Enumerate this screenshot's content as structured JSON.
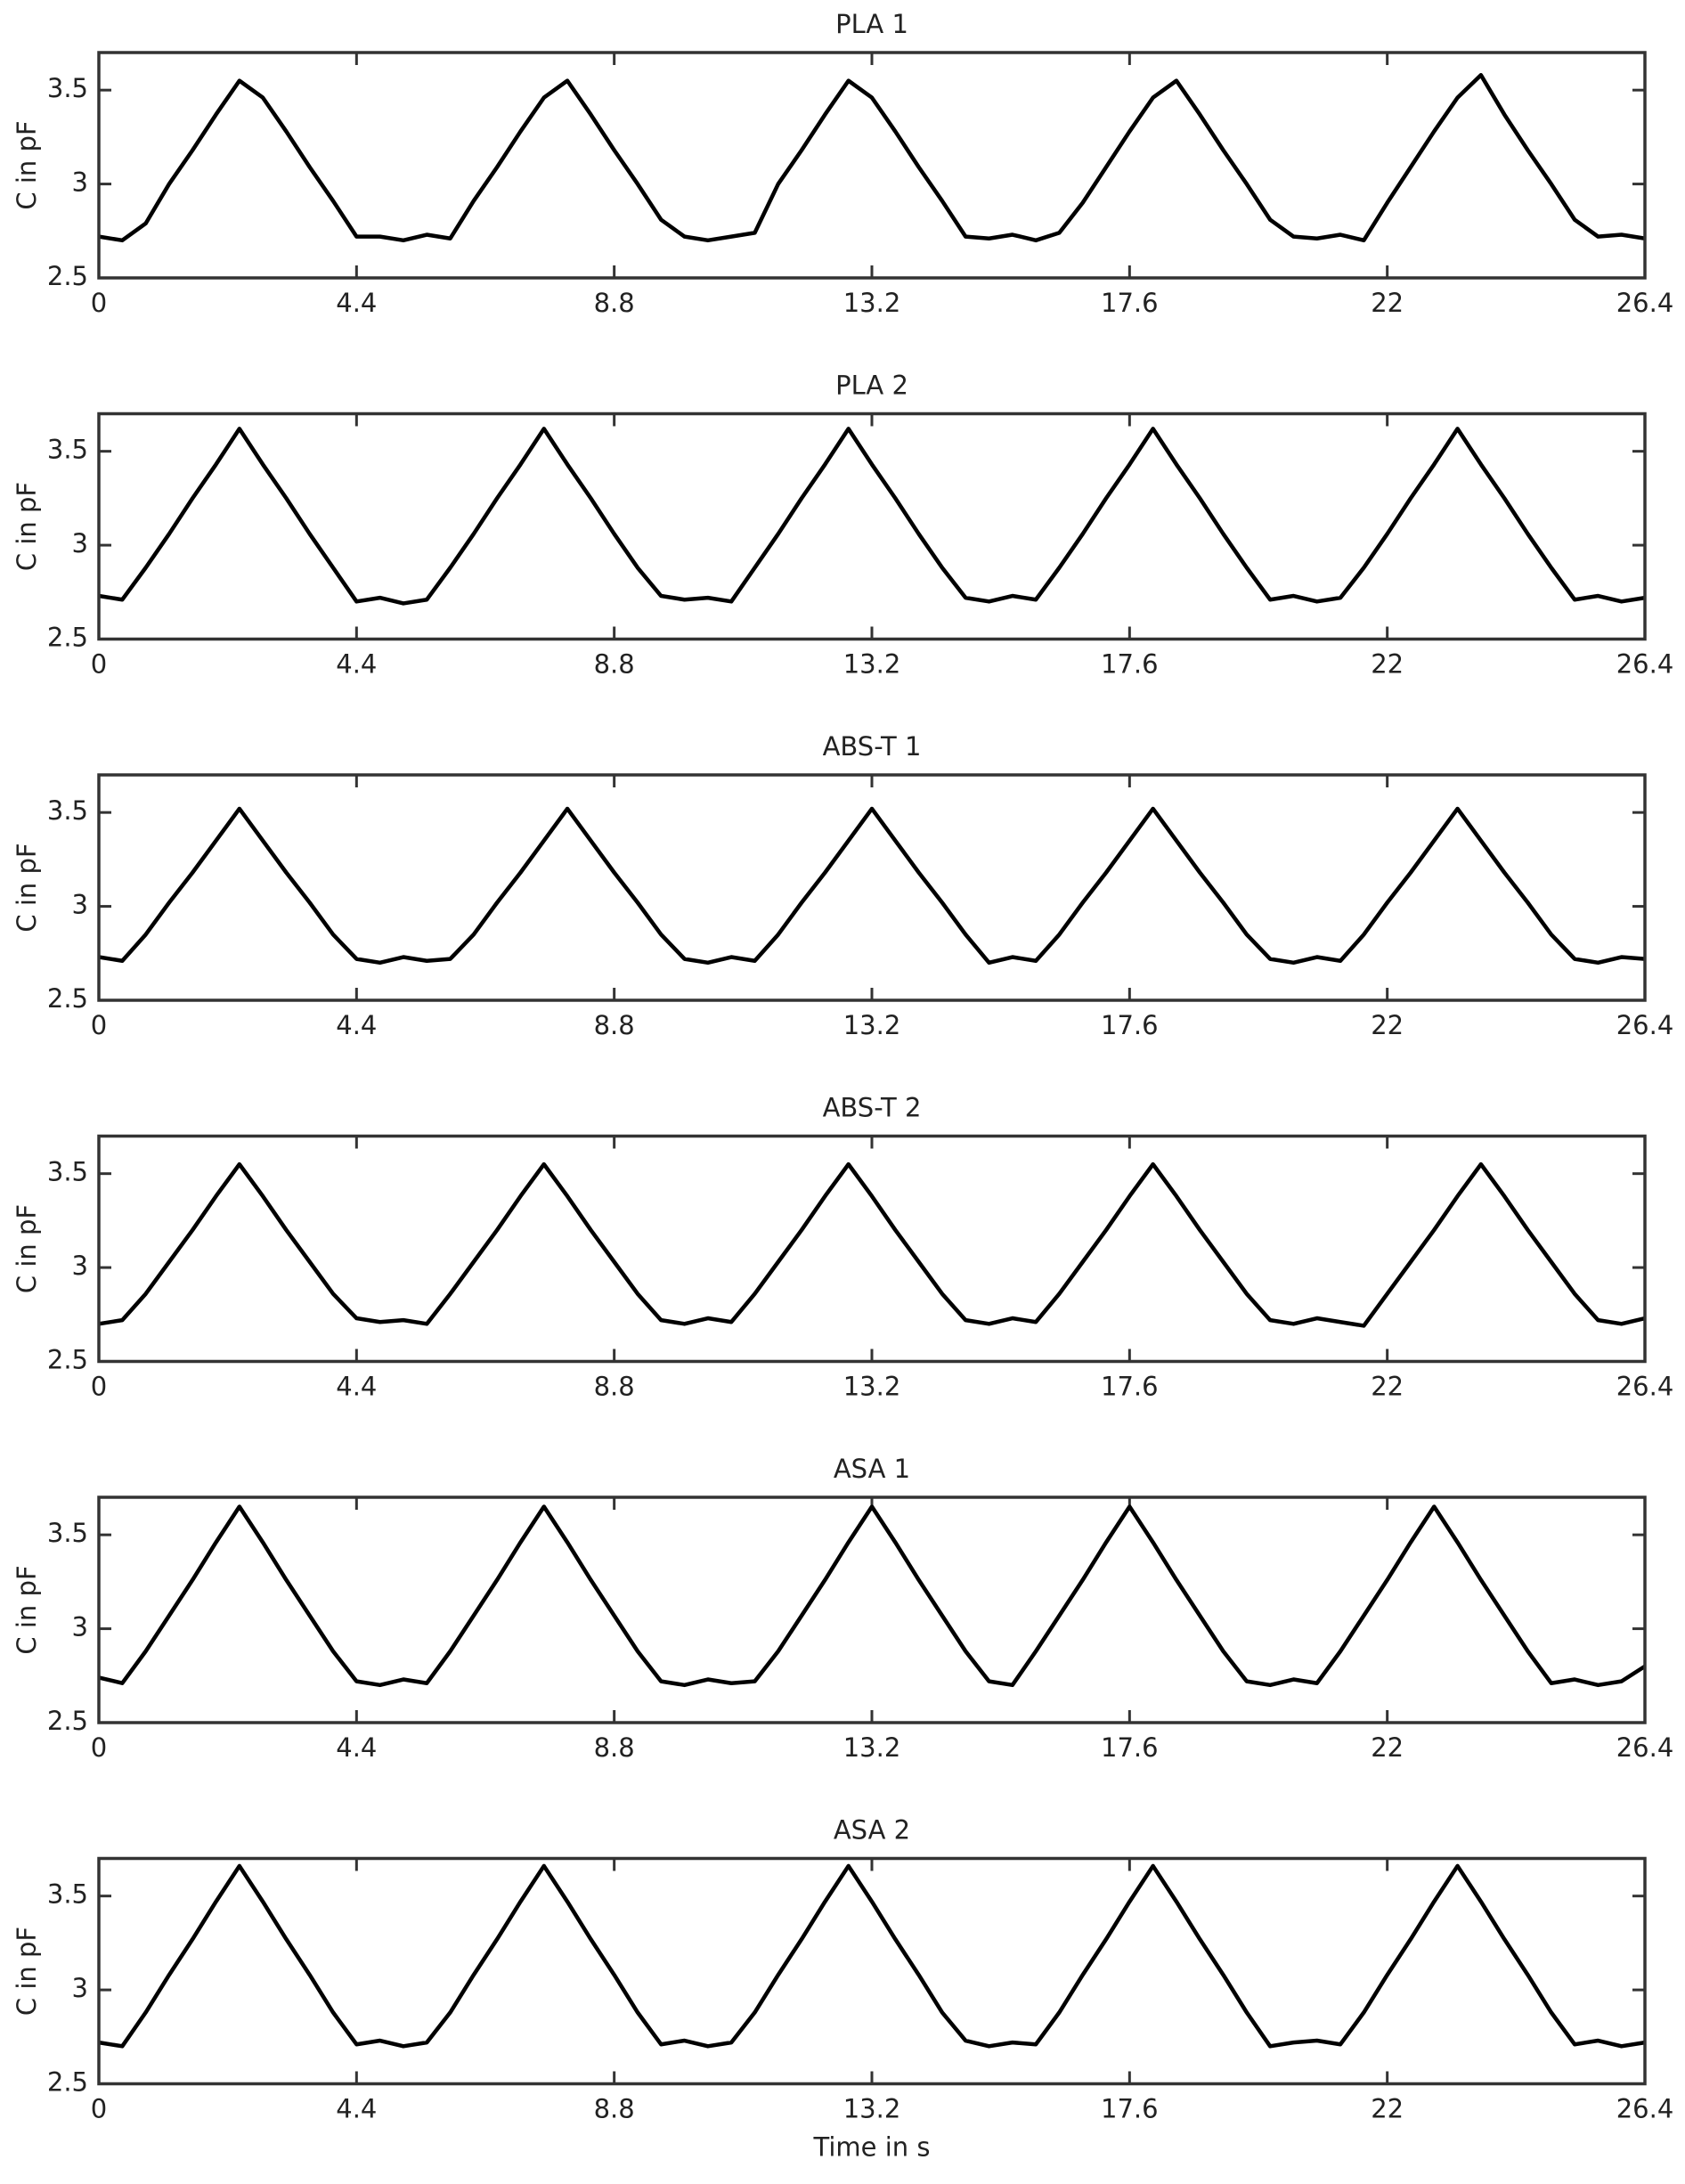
{
  "chart_data": [
    {
      "type": "line",
      "title": "PLA 1",
      "ylabel": "C in pF",
      "color": "#000000",
      "xlim": [
        0,
        26.4
      ],
      "xticks": [
        0,
        4.4,
        8.8,
        13.2,
        17.6,
        22,
        26.4
      ],
      "ylim": [
        2.5,
        3.7
      ],
      "yticks": [
        2.5,
        3,
        3.5
      ],
      "x": [
        0,
        0.4,
        0.8,
        1.2,
        1.6,
        2,
        2.4,
        2.8,
        3.2,
        3.6,
        4,
        4.4,
        4.8,
        5.2,
        5.6,
        6,
        6.4,
        6.8,
        7.2,
        7.6,
        8,
        8.4,
        8.8,
        9.2,
        9.6,
        10,
        10.4,
        10.8,
        11.2,
        11.6,
        12,
        12.4,
        12.8,
        13.2,
        13.6,
        14,
        14.4,
        14.8,
        15.2,
        15.6,
        16,
        16.4,
        16.8,
        17.2,
        17.6,
        18,
        18.4,
        18.8,
        19.2,
        19.6,
        20,
        20.4,
        20.8,
        21.2,
        21.6,
        22,
        22.4,
        22.8,
        23.2,
        23.6,
        24,
        24.4,
        24.8,
        25.2,
        25.6,
        26,
        26.4
      ],
      "values": [
        2.72,
        2.7,
        2.79,
        3.0,
        3.18,
        3.37,
        3.55,
        3.46,
        3.28,
        3.09,
        2.91,
        2.72,
        2.72,
        2.7,
        2.73,
        2.71,
        2.91,
        3.09,
        3.28,
        3.46,
        3.55,
        3.37,
        3.18,
        3.0,
        2.81,
        2.72,
        2.7,
        2.72,
        2.74,
        3.0,
        3.18,
        3.37,
        3.55,
        3.46,
        3.28,
        3.09,
        2.91,
        2.72,
        2.71,
        2.73,
        2.7,
        2.74,
        2.9,
        3.09,
        3.28,
        3.46,
        3.55,
        3.37,
        3.18,
        3.0,
        2.81,
        2.72,
        2.71,
        2.73,
        2.7,
        2.9,
        3.09,
        3.28,
        3.46,
        3.58,
        3.37,
        3.18,
        3.0,
        2.81,
        2.72,
        2.73,
        2.71
      ]
    },
    {
      "type": "line",
      "title": "PLA 2",
      "ylabel": "C in pF",
      "color": "#000000",
      "xlim": [
        0,
        26.4
      ],
      "xticks": [
        0,
        4.4,
        8.8,
        13.2,
        17.6,
        22,
        26.4
      ],
      "ylim": [
        2.5,
        3.7
      ],
      "yticks": [
        2.5,
        3,
        3.5
      ],
      "x": [
        0,
        0.4,
        0.8,
        1.2,
        1.6,
        2,
        2.4,
        2.8,
        3.2,
        3.6,
        4,
        4.4,
        4.8,
        5.2,
        5.6,
        6,
        6.4,
        6.8,
        7.2,
        7.6,
        8,
        8.4,
        8.8,
        9.2,
        9.6,
        10,
        10.4,
        10.8,
        11.2,
        11.6,
        12,
        12.4,
        12.8,
        13.2,
        13.6,
        14,
        14.4,
        14.8,
        15.2,
        15.6,
        16,
        16.4,
        16.8,
        17.2,
        17.6,
        18,
        18.4,
        18.8,
        19.2,
        19.6,
        20,
        20.4,
        20.8,
        21.2,
        21.6,
        22,
        22.4,
        22.8,
        23.2,
        23.6,
        24,
        24.4,
        24.8,
        25.2,
        25.6,
        26,
        26.4
      ],
      "values": [
        2.73,
        2.71,
        2.88,
        3.06,
        3.25,
        3.43,
        3.62,
        3.43,
        3.25,
        3.06,
        2.88,
        2.7,
        2.72,
        2.69,
        2.71,
        2.88,
        3.06,
        3.25,
        3.43,
        3.62,
        3.43,
        3.25,
        3.06,
        2.88,
        2.73,
        2.71,
        2.72,
        2.7,
        2.88,
        3.06,
        3.25,
        3.43,
        3.62,
        3.43,
        3.25,
        3.06,
        2.88,
        2.72,
        2.7,
        2.73,
        2.71,
        2.88,
        3.06,
        3.25,
        3.43,
        3.62,
        3.43,
        3.25,
        3.06,
        2.88,
        2.71,
        2.73,
        2.7,
        2.72,
        2.88,
        3.06,
        3.25,
        3.43,
        3.62,
        3.43,
        3.25,
        3.06,
        2.88,
        2.71,
        2.73,
        2.7,
        2.72
      ]
    },
    {
      "type": "line",
      "title": "ABS-T 1",
      "ylabel": "C in pF",
      "color": "#000000",
      "xlim": [
        0,
        26.4
      ],
      "xticks": [
        0,
        4.4,
        8.8,
        13.2,
        17.6,
        22,
        26.4
      ],
      "ylim": [
        2.5,
        3.7
      ],
      "yticks": [
        2.5,
        3,
        3.5
      ],
      "x": [
        0,
        0.4,
        0.8,
        1.2,
        1.6,
        2,
        2.4,
        2.8,
        3.2,
        3.6,
        4,
        4.4,
        4.8,
        5.2,
        5.6,
        6,
        6.4,
        6.8,
        7.2,
        7.6,
        8,
        8.4,
        8.8,
        9.2,
        9.6,
        10,
        10.4,
        10.8,
        11.2,
        11.6,
        12,
        12.4,
        12.8,
        13.2,
        13.6,
        14,
        14.4,
        14.8,
        15.2,
        15.6,
        16,
        16.4,
        16.8,
        17.2,
        17.6,
        18,
        18.4,
        18.8,
        19.2,
        19.6,
        20,
        20.4,
        20.8,
        21.2,
        21.6,
        22,
        22.4,
        22.8,
        23.2,
        23.6,
        24,
        24.4,
        24.8,
        25.2,
        25.6,
        26,
        26.4
      ],
      "values": [
        2.73,
        2.71,
        2.85,
        3.02,
        3.18,
        3.35,
        3.52,
        3.35,
        3.18,
        3.02,
        2.85,
        2.72,
        2.7,
        2.73,
        2.71,
        2.72,
        2.85,
        3.02,
        3.18,
        3.35,
        3.52,
        3.35,
        3.18,
        3.02,
        2.85,
        2.72,
        2.7,
        2.73,
        2.71,
        2.85,
        3.02,
        3.18,
        3.35,
        3.52,
        3.35,
        3.18,
        3.02,
        2.85,
        2.7,
        2.73,
        2.71,
        2.85,
        3.02,
        3.18,
        3.35,
        3.52,
        3.35,
        3.18,
        3.02,
        2.85,
        2.72,
        2.7,
        2.73,
        2.71,
        2.85,
        3.02,
        3.18,
        3.35,
        3.52,
        3.35,
        3.18,
        3.02,
        2.85,
        2.72,
        2.7,
        2.73,
        2.72
      ]
    },
    {
      "type": "line",
      "title": "ABS-T 2",
      "ylabel": "C in pF",
      "color": "#000000",
      "xlim": [
        0,
        26.4
      ],
      "xticks": [
        0,
        4.4,
        8.8,
        13.2,
        17.6,
        22,
        26.4
      ],
      "ylim": [
        2.5,
        3.7
      ],
      "yticks": [
        2.5,
        3,
        3.5
      ],
      "x": [
        0,
        0.4,
        0.8,
        1.2,
        1.6,
        2,
        2.4,
        2.8,
        3.2,
        3.6,
        4,
        4.4,
        4.8,
        5.2,
        5.6,
        6,
        6.4,
        6.8,
        7.2,
        7.6,
        8,
        8.4,
        8.8,
        9.2,
        9.6,
        10,
        10.4,
        10.8,
        11.2,
        11.6,
        12,
        12.4,
        12.8,
        13.2,
        13.6,
        14,
        14.4,
        14.8,
        15.2,
        15.6,
        16,
        16.4,
        16.8,
        17.2,
        17.6,
        18,
        18.4,
        18.8,
        19.2,
        19.6,
        20,
        20.4,
        20.8,
        21.2,
        21.6,
        22,
        22.4,
        22.8,
        23.2,
        23.6,
        24,
        24.4,
        24.8,
        25.2,
        25.6,
        26,
        26.4
      ],
      "values": [
        2.7,
        2.72,
        2.86,
        3.03,
        3.2,
        3.38,
        3.55,
        3.38,
        3.2,
        3.03,
        2.86,
        2.73,
        2.71,
        2.72,
        2.7,
        2.86,
        3.03,
        3.2,
        3.38,
        3.55,
        3.38,
        3.2,
        3.03,
        2.86,
        2.72,
        2.7,
        2.73,
        2.71,
        2.86,
        3.03,
        3.2,
        3.38,
        3.55,
        3.38,
        3.2,
        3.03,
        2.86,
        2.72,
        2.7,
        2.73,
        2.71,
        2.86,
        3.03,
        3.2,
        3.38,
        3.55,
        3.38,
        3.2,
        3.03,
        2.86,
        2.72,
        2.7,
        2.73,
        2.71,
        2.69,
        2.86,
        3.03,
        3.2,
        3.38,
        3.55,
        3.38,
        3.2,
        3.03,
        2.86,
        2.72,
        2.7,
        2.73
      ]
    },
    {
      "type": "line",
      "title": "ASA 1",
      "ylabel": "C in pF",
      "color": "#000000",
      "xlim": [
        0,
        26.4
      ],
      "xticks": [
        0,
        4.4,
        8.8,
        13.2,
        17.6,
        22,
        26.4
      ],
      "ylim": [
        2.5,
        3.7
      ],
      "yticks": [
        2.5,
        3,
        3.5
      ],
      "x": [
        0,
        0.4,
        0.8,
        1.2,
        1.6,
        2,
        2.4,
        2.8,
        3.2,
        3.6,
        4,
        4.4,
        4.8,
        5.2,
        5.6,
        6,
        6.4,
        6.8,
        7.2,
        7.6,
        8,
        8.4,
        8.8,
        9.2,
        9.6,
        10,
        10.4,
        10.8,
        11.2,
        11.6,
        12,
        12.4,
        12.8,
        13.2,
        13.6,
        14,
        14.4,
        14.8,
        15.2,
        15.6,
        16,
        16.4,
        16.8,
        17.2,
        17.6,
        18,
        18.4,
        18.8,
        19.2,
        19.6,
        20,
        20.4,
        20.8,
        21.2,
        21.6,
        22,
        22.4,
        22.8,
        23.2,
        23.6,
        24,
        24.4,
        24.8,
        25.2,
        25.6,
        26,
        26.4
      ],
      "values": [
        2.74,
        2.71,
        2.88,
        3.07,
        3.26,
        3.46,
        3.65,
        3.46,
        3.26,
        3.07,
        2.88,
        2.72,
        2.7,
        2.73,
        2.71,
        2.88,
        3.07,
        3.26,
        3.46,
        3.65,
        3.46,
        3.26,
        3.07,
        2.88,
        2.72,
        2.7,
        2.73,
        2.71,
        2.72,
        2.88,
        3.07,
        3.26,
        3.46,
        3.65,
        3.46,
        3.26,
        3.07,
        2.88,
        2.72,
        2.7,
        2.88,
        3.07,
        3.26,
        3.46,
        3.65,
        3.46,
        3.26,
        3.07,
        2.88,
        2.72,
        2.7,
        2.73,
        2.71,
        2.88,
        3.07,
        3.26,
        3.46,
        3.65,
        3.46,
        3.26,
        3.07,
        2.88,
        2.71,
        2.73,
        2.7,
        2.72,
        2.8
      ]
    },
    {
      "type": "line",
      "title": "ASA 2",
      "ylabel": "C in pF",
      "xlabel": "Time in s",
      "color": "#000000",
      "xlim": [
        0,
        26.4
      ],
      "xticks": [
        0,
        4.4,
        8.8,
        13.2,
        17.6,
        22,
        26.4
      ],
      "ylim": [
        2.5,
        3.7
      ],
      "yticks": [
        2.5,
        3,
        3.5
      ],
      "x": [
        0,
        0.4,
        0.8,
        1.2,
        1.6,
        2,
        2.4,
        2.8,
        3.2,
        3.6,
        4,
        4.4,
        4.8,
        5.2,
        5.6,
        6,
        6.4,
        6.8,
        7.2,
        7.6,
        8,
        8.4,
        8.8,
        9.2,
        9.6,
        10,
        10.4,
        10.8,
        11.2,
        11.6,
        12,
        12.4,
        12.8,
        13.2,
        13.6,
        14,
        14.4,
        14.8,
        15.2,
        15.6,
        16,
        16.4,
        16.8,
        17.2,
        17.6,
        18,
        18.4,
        18.8,
        19.2,
        19.6,
        20,
        20.4,
        20.8,
        21.2,
        21.6,
        22,
        22.4,
        22.8,
        23.2,
        23.6,
        24,
        24.4,
        24.8,
        25.2,
        25.6,
        26,
        26.4
      ],
      "values": [
        2.72,
        2.7,
        2.88,
        3.08,
        3.27,
        3.47,
        3.66,
        3.47,
        3.27,
        3.08,
        2.88,
        2.71,
        2.73,
        2.7,
        2.72,
        2.88,
        3.08,
        3.27,
        3.47,
        3.66,
        3.47,
        3.27,
        3.08,
        2.88,
        2.71,
        2.73,
        2.7,
        2.72,
        2.88,
        3.08,
        3.27,
        3.47,
        3.66,
        3.47,
        3.27,
        3.08,
        2.88,
        2.73,
        2.7,
        2.72,
        2.71,
        2.88,
        3.08,
        3.27,
        3.47,
        3.66,
        3.47,
        3.27,
        3.08,
        2.88,
        2.7,
        2.72,
        2.73,
        2.71,
        2.88,
        3.08,
        3.27,
        3.47,
        3.66,
        3.47,
        3.27,
        3.08,
        2.88,
        2.71,
        2.73,
        2.7,
        2.72
      ]
    }
  ]
}
